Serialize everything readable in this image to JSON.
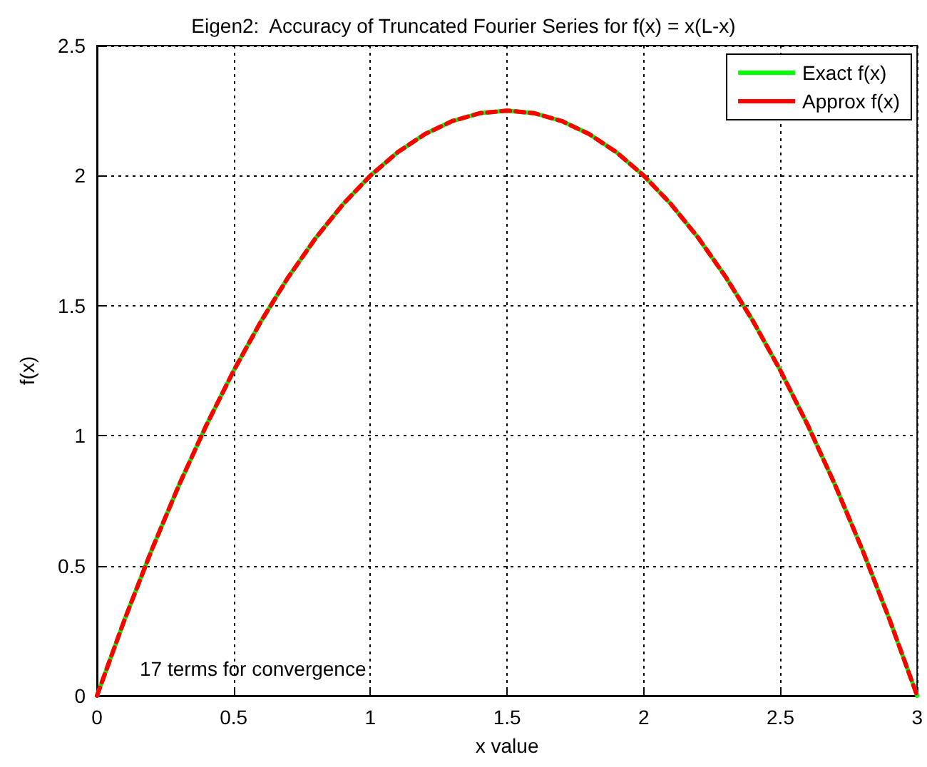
{
  "chart_data": {
    "type": "line",
    "title": "Eigen2:  Accuracy of Truncated Fourier Series for f(x) = x(L-x)",
    "xlabel": "x value",
    "ylabel": "f(x)",
    "x": [
      0,
      0.1,
      0.2,
      0.3,
      0.4,
      0.5,
      0.6,
      0.7,
      0.8,
      0.9,
      1,
      1.1,
      1.2,
      1.3,
      1.4,
      1.5,
      1.6,
      1.7,
      1.8,
      1.9,
      2,
      2.1,
      2.2,
      2.3,
      2.4,
      2.5,
      2.6,
      2.7,
      2.8,
      2.9,
      3
    ],
    "series": [
      {
        "name": "Exact f(x)",
        "color": "#00ff00",
        "line_style": "solid",
        "values": [
          0,
          0.29,
          0.56,
          0.81,
          1.04,
          1.25,
          1.44,
          1.61,
          1.76,
          1.89,
          2,
          2.09,
          2.16,
          2.21,
          2.24,
          2.25,
          2.24,
          2.21,
          2.16,
          2.09,
          2,
          1.89,
          1.76,
          1.61,
          1.44,
          1.25,
          1.04,
          0.81,
          0.56,
          0.29,
          0
        ]
      },
      {
        "name": "Approx f(x)",
        "color": "#ff0000",
        "line_style": "dashed",
        "values": [
          0,
          0.29,
          0.56,
          0.81,
          1.04,
          1.25,
          1.44,
          1.61,
          1.76,
          1.89,
          2,
          2.09,
          2.16,
          2.21,
          2.24,
          2.25,
          2.24,
          2.21,
          2.16,
          2.09,
          2,
          1.89,
          1.76,
          1.61,
          1.44,
          1.25,
          1.04,
          0.81,
          0.56,
          0.29,
          0
        ]
      }
    ],
    "xlim": [
      0,
      3
    ],
    "xticks": [
      0,
      0.5,
      1,
      1.5,
      2,
      2.5,
      3
    ],
    "ylim": [
      0,
      2.5
    ],
    "yticks": [
      0,
      0.5,
      1,
      1.5,
      2,
      2.5
    ],
    "grid": true,
    "legend": "top right",
    "annotations": [
      "17 terms for convergence"
    ]
  }
}
